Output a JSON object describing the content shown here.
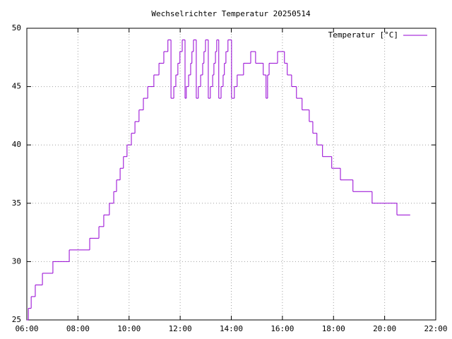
{
  "chart_data": {
    "type": "line",
    "title": "Wechselrichter Temperatur 20250514",
    "step": true,
    "grid": true,
    "legend": "top-right",
    "xlim": [
      6,
      22
    ],
    "xticks": [
      {
        "value": 6,
        "label": "06:00"
      },
      {
        "value": 8,
        "label": "08:00"
      },
      {
        "value": 10,
        "label": "10:00"
      },
      {
        "value": 12,
        "label": "12:00"
      },
      {
        "value": 14,
        "label": "14:00"
      },
      {
        "value": 16,
        "label": "16:00"
      },
      {
        "value": 18,
        "label": "18:00"
      },
      {
        "value": 20,
        "label": "20:00"
      },
      {
        "value": 22,
        "label": "22:00"
      }
    ],
    "ylim": [
      25,
      50
    ],
    "yticks": [
      25,
      30,
      35,
      40,
      45,
      50
    ],
    "series": [
      {
        "name": "Temperatur [°C]",
        "color": "#9400d3",
        "x": [
          6.0,
          6.06,
          6.17,
          6.33,
          6.61,
          7.02,
          7.66,
          8.46,
          8.82,
          9.01,
          9.23,
          9.4,
          9.51,
          9.65,
          9.78,
          9.92,
          10.09,
          10.23,
          10.39,
          10.56,
          10.73,
          10.97,
          11.17,
          11.36,
          11.52,
          11.64,
          11.75,
          11.83,
          11.91,
          11.99,
          12.08,
          12.19,
          12.24,
          12.33,
          12.41,
          12.46,
          12.52,
          12.63,
          12.71,
          12.8,
          12.88,
          12.93,
          12.99,
          13.1,
          13.18,
          13.27,
          13.32,
          13.38,
          13.43,
          13.51,
          13.6,
          13.68,
          13.73,
          13.79,
          13.87,
          14.01,
          14.12,
          14.23,
          14.48,
          14.76,
          14.95,
          15.25,
          15.36,
          15.42,
          15.48,
          15.81,
          16.08,
          16.19,
          16.36,
          16.55,
          16.77,
          17.05,
          17.19,
          17.35,
          17.57,
          17.93,
          18.27,
          18.76,
          19.51,
          20.48,
          21.0
        ],
        "values": [
          25,
          26,
          27,
          28,
          29,
          30,
          31,
          32,
          33,
          34,
          35,
          36,
          37,
          38,
          39,
          40,
          41,
          42,
          43,
          44,
          45,
          46,
          47,
          48,
          49,
          44,
          45,
          46,
          47,
          48,
          49,
          44,
          45,
          46,
          47,
          48,
          49,
          44,
          45,
          46,
          47,
          48,
          49,
          44,
          45,
          46,
          47,
          48,
          49,
          44,
          45,
          46,
          47,
          48,
          49,
          44,
          45,
          46,
          47,
          48,
          47,
          46,
          44,
          46,
          47,
          48,
          47,
          46,
          45,
          44,
          43,
          42,
          41,
          40,
          39,
          38,
          37,
          36,
          35,
          34,
          34
        ]
      }
    ]
  }
}
